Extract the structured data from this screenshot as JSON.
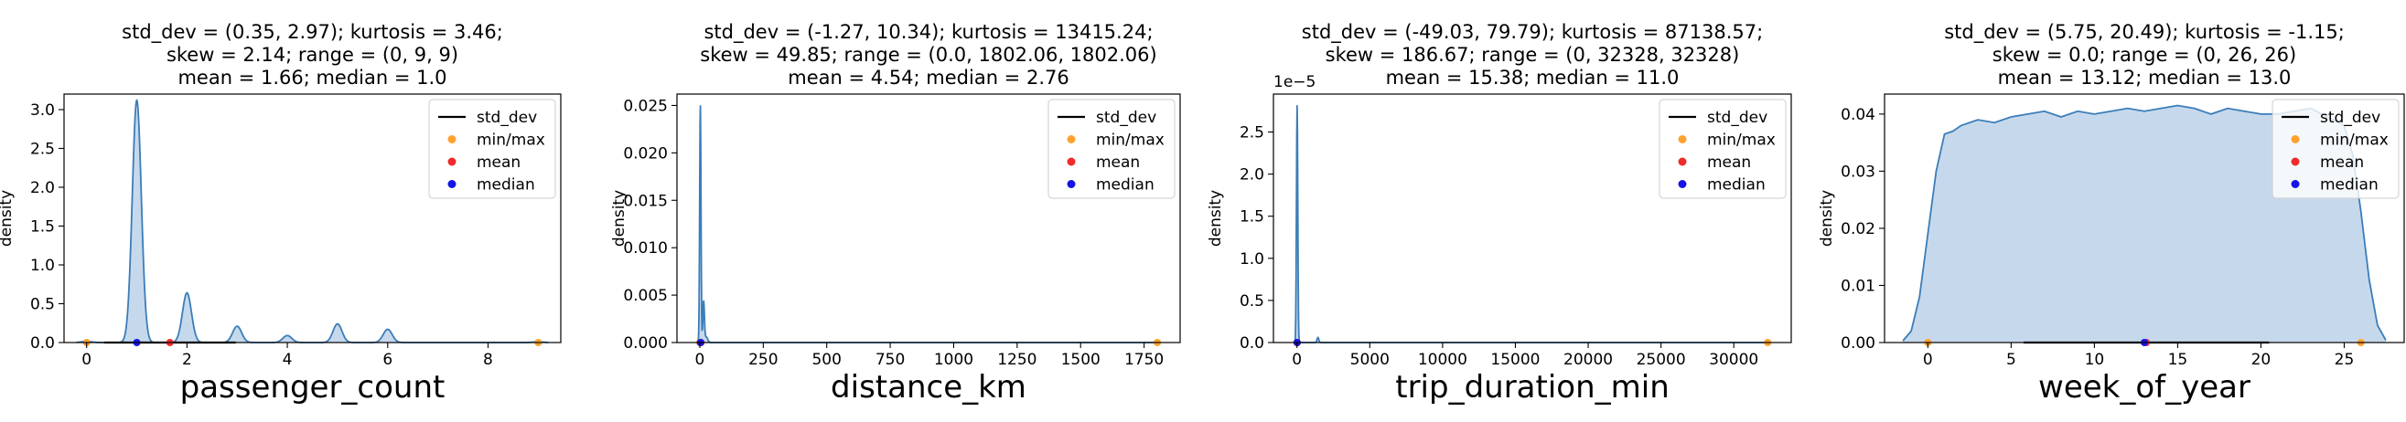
{
  "chart_data": [
    {
      "type": "area",
      "title_lines": [
        "std_dev = (0.35, 2.97); kurtosis = 3.46;",
        "skew = 2.14; range = (0, 9, 9)",
        "mean = 1.66; median = 1.0"
      ],
      "xlabel": "passenger_count",
      "ylabel": "density",
      "xlim": [
        -0.45,
        9.45
      ],
      "ylim": [
        0,
        3.2
      ],
      "xticks": [
        0,
        2,
        4,
        6,
        8
      ],
      "xtick_labels": [
        "0",
        "2",
        "4",
        "6",
        "8"
      ],
      "yticks": [
        0,
        0.5,
        1.0,
        1.5,
        2.0,
        2.5,
        3.0
      ],
      "ytick_labels": [
        "0.0",
        "0.5",
        "1.0",
        "1.5",
        "2.0",
        "2.5",
        "3.0"
      ],
      "y_multiplier": "",
      "kde_peaks": [
        {
          "x": 1,
          "h": 3.12,
          "w": 0.09
        },
        {
          "x": 2,
          "h": 0.64,
          "w": 0.09
        },
        {
          "x": 3,
          "h": 0.21,
          "w": 0.09
        },
        {
          "x": 4,
          "h": 0.09,
          "w": 0.09
        },
        {
          "x": 5,
          "h": 0.24,
          "w": 0.09
        },
        {
          "x": 6,
          "h": 0.17,
          "w": 0.09
        },
        {
          "x": 0,
          "h": 0.015,
          "w": 0.1
        },
        {
          "x": 9,
          "h": 0.01,
          "w": 0.1
        }
      ],
      "kde_x_range": [
        -0.2,
        9.2
      ],
      "std_dev": [
        0.35,
        2.97
      ],
      "min": 0,
      "max": 9,
      "mean": 1.66,
      "median": 1.0,
      "legend": [
        "std_dev",
        "min/max",
        "mean",
        "median"
      ],
      "legend_position": "top-right"
    },
    {
      "type": "area",
      "title_lines": [
        "std_dev = (-1.27, 10.34); kurtosis = 13415.24;",
        "skew = 49.85; range = (0.0, 1802.06, 1802.06)",
        "mean = 4.54; median = 2.76"
      ],
      "xlabel": "distance_km",
      "ylabel": "density",
      "xlim": [
        -90,
        1892
      ],
      "ylim": [
        0,
        0.0262
      ],
      "xticks": [
        0,
        250,
        500,
        750,
        1000,
        1250,
        1500,
        1750
      ],
      "xtick_labels": [
        "0",
        "250",
        "500",
        "750",
        "1000",
        "1250",
        "1500",
        "1750"
      ],
      "yticks": [
        0,
        0.005,
        0.01,
        0.015,
        0.02,
        0.025
      ],
      "ytick_labels": [
        "0.000",
        "0.005",
        "0.010",
        "0.015",
        "0.020",
        "0.025"
      ],
      "y_multiplier": "",
      "kde_peaks": [
        {
          "x": 2,
          "h": 0.0252,
          "w": 2.6
        },
        {
          "x": 15,
          "h": 0.0043,
          "w": 3
        },
        {
          "x": 25,
          "h": 0.0006,
          "w": 6
        }
      ],
      "kde_x_range": [
        -12,
        1810
      ],
      "std_dev": [
        -1.27,
        10.34
      ],
      "min": 0.0,
      "max": 1802.06,
      "mean": 4.54,
      "median": 2.76,
      "legend": [
        "std_dev",
        "min/max",
        "mean",
        "median"
      ],
      "legend_position": "top-right"
    },
    {
      "type": "area",
      "title_lines": [
        "std_dev = (-49.03, 79.79); kurtosis = 87138.57;",
        "skew = 186.67; range = (0, 32328, 32328)",
        "mean = 15.38; median = 11.0"
      ],
      "xlabel": "trip_duration_min",
      "ylabel": "density",
      "xlim": [
        -1616,
        33944
      ],
      "ylim": [
        0,
        2.95
      ],
      "xticks": [
        0,
        5000,
        10000,
        15000,
        20000,
        25000,
        30000
      ],
      "xtick_labels": [
        "0",
        "5000",
        "10000",
        "15000",
        "20000",
        "25000",
        "30000"
      ],
      "yticks": [
        0,
        0.5,
        1.0,
        1.5,
        2.0,
        2.5
      ],
      "ytick_labels": [
        "0.0",
        "0.5",
        "1.0",
        "1.5",
        "2.0",
        "2.5"
      ],
      "y_multiplier": "1e−5",
      "kde_peaks": [
        {
          "x": 11,
          "h": 2.82,
          "w": 45
        },
        {
          "x": 1440,
          "h": 0.06,
          "w": 60
        }
      ],
      "kde_x_range": [
        -200,
        32400
      ],
      "std_dev": [
        -49.03,
        79.79
      ],
      "min": 0,
      "max": 32328,
      "mean": 15.38,
      "median": 11.0,
      "legend": [
        "std_dev",
        "min/max",
        "mean",
        "median"
      ],
      "legend_position": "top-right"
    },
    {
      "type": "area",
      "title_lines": [
        "std_dev = (5.75, 20.49); kurtosis = -1.15;",
        "skew = 0.0; range = (0, 26, 26)",
        "mean = 13.12; median = 13.0"
      ],
      "xlabel": "week_of_year",
      "ylabel": "density",
      "xlim": [
        -2.6,
        28.6
      ],
      "ylim": [
        0,
        0.0435
      ],
      "xticks": [
        0,
        5,
        10,
        15,
        20,
        25
      ],
      "xtick_labels": [
        "0",
        "5",
        "10",
        "15",
        "20",
        "25"
      ],
      "yticks": [
        0,
        0.01,
        0.02,
        0.03,
        0.04
      ],
      "ytick_labels": [
        "0.00",
        "0.01",
        "0.02",
        "0.03",
        "0.04"
      ],
      "y_multiplier": "",
      "kde_curve": {
        "x": [
          -1.5,
          -1.0,
          -0.5,
          0.0,
          0.5,
          1.0,
          1.5,
          2.0,
          3.0,
          4.0,
          5.0,
          6.0,
          7.0,
          8.0,
          9.0,
          10.0,
          11.0,
          12.0,
          13.0,
          14.0,
          15.0,
          16.0,
          17.0,
          18.0,
          19.0,
          20.0,
          21.0,
          22.0,
          23.0,
          24.0,
          25.0,
          25.5,
          26.0,
          26.5,
          27.0,
          27.5
        ],
        "y": [
          0.0003,
          0.002,
          0.008,
          0.019,
          0.03,
          0.0365,
          0.037,
          0.038,
          0.039,
          0.0385,
          0.0395,
          0.04,
          0.0405,
          0.0395,
          0.0405,
          0.04,
          0.0405,
          0.041,
          0.0405,
          0.041,
          0.0415,
          0.041,
          0.04,
          0.041,
          0.0405,
          0.04,
          0.04,
          0.0405,
          0.041,
          0.0395,
          0.038,
          0.033,
          0.023,
          0.011,
          0.003,
          0.0004
        ]
      },
      "std_dev": [
        5.75,
        20.49
      ],
      "min": 0,
      "max": 26,
      "mean": 13.12,
      "median": 13.0,
      "legend": [
        "std_dev",
        "min/max",
        "mean",
        "median"
      ],
      "legend_position": "top-right"
    }
  ],
  "colors": {
    "kde_line": "#3b7db8",
    "kde_fill": "#c6d9ec",
    "std_dev": "#000000",
    "min_max": "#ffa12e",
    "mean": "#ef2b2b",
    "median": "#1414e6",
    "axis": "#000000",
    "legend_border": "#cccccc"
  }
}
